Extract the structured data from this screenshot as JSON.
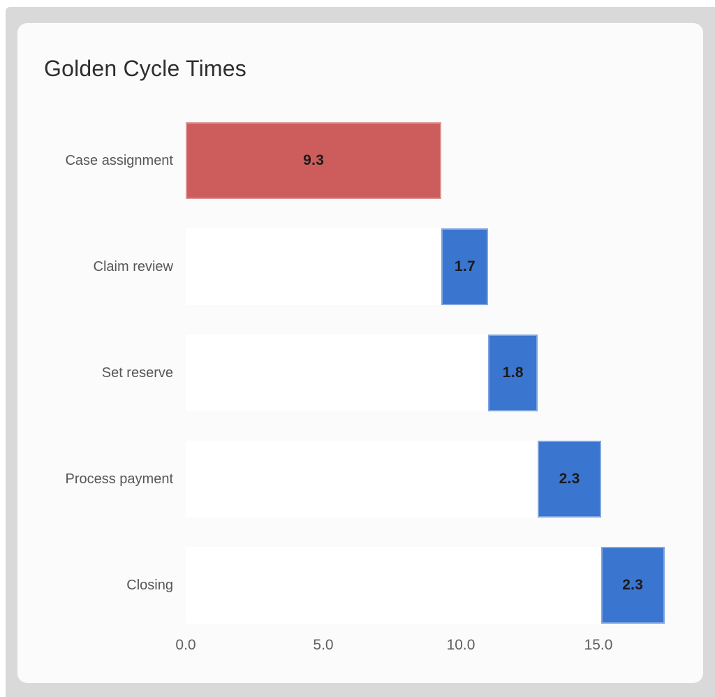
{
  "card": {
    "title": "Golden Cycle Times"
  },
  "colors": {
    "backdrop": "#d9d9d9",
    "card_background": "#fbfbfb",
    "base_bar": "#ffffff",
    "negative_red": "#cd5d5d",
    "positive_blue": "#3a75cf",
    "title_text": "#2e2e2e",
    "category_text": "#565656",
    "tick_text": "#5f5f5f",
    "value_text": "#1b1b1b"
  },
  "chart_data": {
    "type": "bar",
    "variant": "horizontal-waterfall",
    "title": "Golden Cycle Times",
    "categories": [
      "Case assignment",
      "Claim review",
      "Set reserve",
      "Process payment",
      "Closing"
    ],
    "values": [
      9.3,
      1.7,
      1.8,
      2.3,
      2.3
    ],
    "starts": [
      0,
      9.3,
      11.0,
      12.8,
      15.1
    ],
    "ends": [
      9.3,
      11.0,
      12.8,
      15.1,
      17.4
    ],
    "value_labels": [
      "9.3",
      "1.7",
      "1.8",
      "2.3",
      "2.3"
    ],
    "bar_colors": [
      "#cd5d5d",
      "#3a75cf",
      "#3a75cf",
      "#3a75cf",
      "#3a75cf"
    ],
    "x_ticks": [
      {
        "label": "0.0",
        "value": 0
      },
      {
        "label": "5.0",
        "value": 5
      },
      {
        "label": "10.0",
        "value": 10
      },
      {
        "label": "15.0",
        "value": 15
      }
    ],
    "xlim": [
      0,
      17.4
    ],
    "xlabel": "",
    "ylabel": "",
    "grid": false,
    "legend": false
  }
}
